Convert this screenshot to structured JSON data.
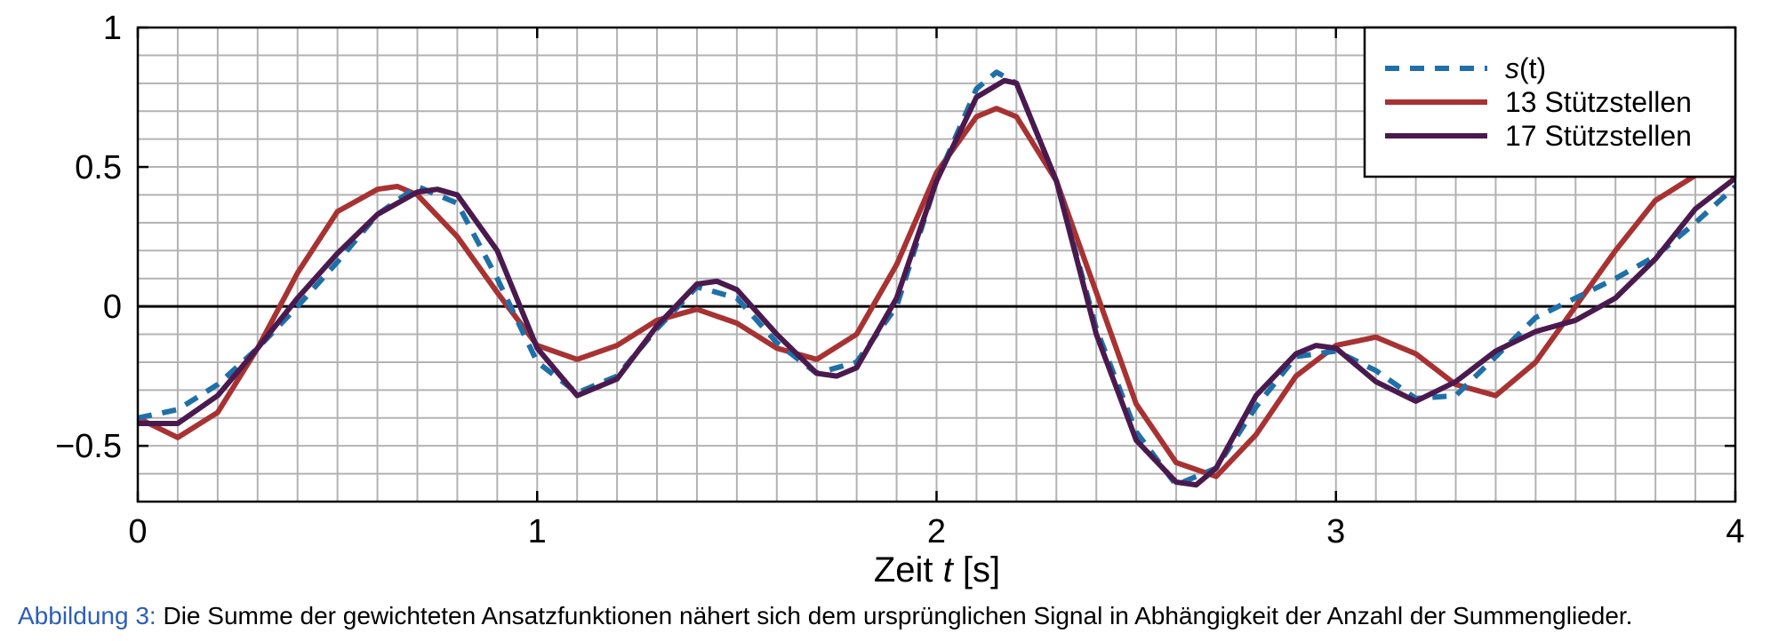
{
  "chart_data": {
    "type": "line",
    "xlabel_prefix": "Zeit ",
    "xlabel_var": "t",
    "xlabel_unit": " [s]",
    "xlim": [
      0,
      4
    ],
    "ylim": [
      -0.7,
      1
    ],
    "xticks": [
      0,
      1,
      2,
      3,
      4
    ],
    "xtick_labels": [
      "0",
      "1",
      "2",
      "3",
      "4"
    ],
    "yticks": [
      -0.5,
      0,
      0.5,
      1
    ],
    "ytick_labels": [
      "−0.5",
      "0",
      "0.5",
      "1"
    ],
    "grid": true,
    "minor_x_step": 0.1,
    "minor_y_step": 0.1,
    "legend_position": "top-right",
    "series": [
      {
        "name": "s(t)",
        "legend_label_main": "s",
        "legend_label_paren": "(t)",
        "color": "#1f6fa8",
        "style": "dashed",
        "x": [
          0,
          0.1,
          0.2,
          0.3,
          0.4,
          0.5,
          0.6,
          0.7,
          0.8,
          0.9,
          1.0,
          1.1,
          1.2,
          1.3,
          1.4,
          1.5,
          1.6,
          1.7,
          1.8,
          1.9,
          2.0,
          2.1,
          2.15,
          2.2,
          2.3,
          2.4,
          2.5,
          2.6,
          2.7,
          2.8,
          2.9,
          3.0,
          3.1,
          3.2,
          3.3,
          3.4,
          3.5,
          3.6,
          3.7,
          3.8,
          3.9,
          4.0
        ],
        "y": [
          -0.4,
          -0.37,
          -0.28,
          -0.15,
          0.0,
          0.16,
          0.33,
          0.43,
          0.37,
          0.1,
          -0.2,
          -0.31,
          -0.25,
          -0.08,
          0.07,
          0.03,
          -0.13,
          -0.24,
          -0.2,
          0.0,
          0.45,
          0.78,
          0.84,
          0.8,
          0.45,
          -0.08,
          -0.45,
          -0.64,
          -0.58,
          -0.36,
          -0.18,
          -0.16,
          -0.23,
          -0.33,
          -0.32,
          -0.18,
          -0.04,
          0.03,
          0.1,
          0.18,
          0.3,
          0.43
        ]
      },
      {
        "name": "13 Stützstellen",
        "color": "#a83232",
        "style": "solid",
        "x": [
          0,
          0.1,
          0.2,
          0.3,
          0.4,
          0.5,
          0.6,
          0.65,
          0.7,
          0.8,
          0.9,
          1.0,
          1.1,
          1.2,
          1.3,
          1.4,
          1.5,
          1.6,
          1.7,
          1.8,
          1.9,
          2.0,
          2.1,
          2.15,
          2.2,
          2.3,
          2.4,
          2.5,
          2.6,
          2.7,
          2.8,
          2.9,
          3.0,
          3.1,
          3.2,
          3.3,
          3.4,
          3.5,
          3.6,
          3.7,
          3.8,
          3.9,
          4.0
        ],
        "y": [
          -0.4,
          -0.47,
          -0.38,
          -0.15,
          0.12,
          0.34,
          0.42,
          0.43,
          0.4,
          0.25,
          0.05,
          -0.14,
          -0.19,
          -0.14,
          -0.05,
          -0.01,
          -0.06,
          -0.15,
          -0.19,
          -0.1,
          0.15,
          0.48,
          0.68,
          0.71,
          0.68,
          0.45,
          0.05,
          -0.35,
          -0.56,
          -0.61,
          -0.46,
          -0.25,
          -0.14,
          -0.11,
          -0.17,
          -0.28,
          -0.32,
          -0.2,
          0.0,
          0.2,
          0.38,
          0.47,
          0.47
        ]
      },
      {
        "name": "17 Stützstellen",
        "color": "#4a1a4f",
        "style": "solid",
        "x": [
          0,
          0.1,
          0.2,
          0.3,
          0.4,
          0.5,
          0.6,
          0.7,
          0.75,
          0.8,
          0.9,
          1.0,
          1.1,
          1.2,
          1.3,
          1.4,
          1.45,
          1.5,
          1.6,
          1.7,
          1.75,
          1.8,
          1.9,
          2.0,
          2.1,
          2.17,
          2.2,
          2.3,
          2.4,
          2.5,
          2.6,
          2.65,
          2.7,
          2.8,
          2.9,
          2.95,
          3.0,
          3.1,
          3.2,
          3.3,
          3.4,
          3.5,
          3.6,
          3.7,
          3.8,
          3.9,
          4.0
        ],
        "y": [
          -0.42,
          -0.42,
          -0.32,
          -0.15,
          0.03,
          0.19,
          0.33,
          0.41,
          0.42,
          0.4,
          0.2,
          -0.15,
          -0.32,
          -0.26,
          -0.07,
          0.08,
          0.09,
          0.06,
          -0.1,
          -0.24,
          -0.25,
          -0.22,
          0.03,
          0.45,
          0.75,
          0.81,
          0.8,
          0.45,
          -0.1,
          -0.48,
          -0.63,
          -0.64,
          -0.58,
          -0.32,
          -0.17,
          -0.14,
          -0.15,
          -0.27,
          -0.34,
          -0.27,
          -0.16,
          -0.09,
          -0.05,
          0.03,
          0.17,
          0.35,
          0.46
        ]
      }
    ]
  },
  "caption": {
    "label": "Abbildung 3:",
    "text": "Die Summe der gewichteten Ansatzfunktionen nähert sich dem ursprünglichen Signal in Abhängigkeit der Anzahl der Summenglieder."
  }
}
